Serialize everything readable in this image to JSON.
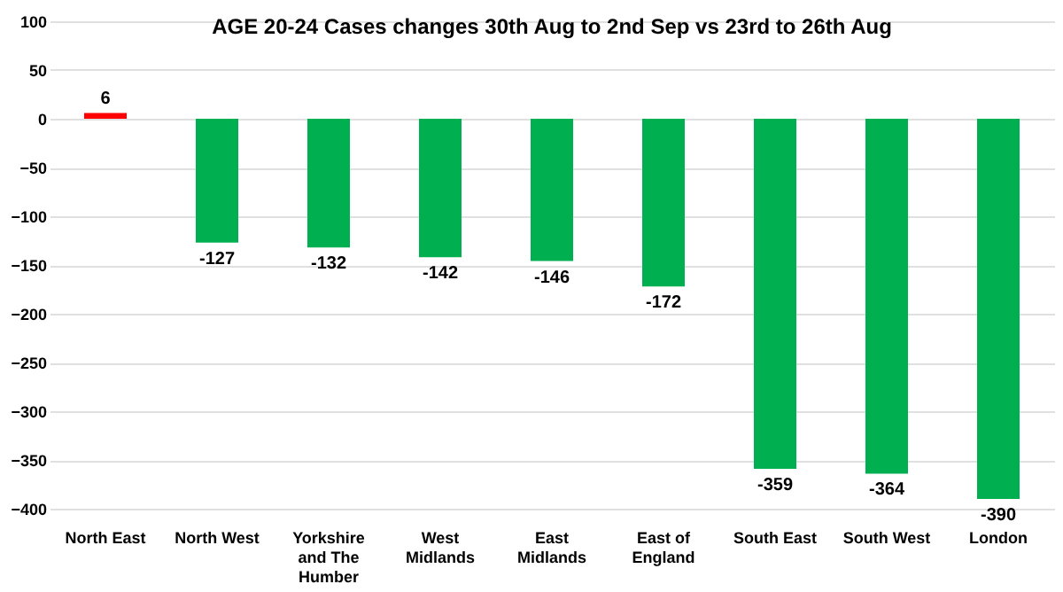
{
  "chart_data": {
    "type": "bar",
    "title": "AGE 20-24 Cases changes 30th Aug to 2nd Sep vs 23rd to 26th Aug",
    "categories": [
      "North East",
      "North West",
      "Yorkshire and The Humber",
      "West Midlands",
      "East Midlands",
      "East of England",
      "South East",
      "South West",
      "London"
    ],
    "values": [
      6,
      -127,
      -132,
      -142,
      -146,
      -172,
      -359,
      -364,
      -390
    ],
    "colors": [
      "#ff0000",
      "#00b050",
      "#00b050",
      "#00b050",
      "#00b050",
      "#00b050",
      "#00b050",
      "#00b050",
      "#00b050"
    ],
    "ylim": [
      -400,
      100
    ],
    "yticks": [
      -400,
      -350,
      -300,
      -250,
      -200,
      -150,
      -100,
      -50,
      0,
      50,
      100
    ],
    "grid": "y",
    "data_labels": true
  }
}
